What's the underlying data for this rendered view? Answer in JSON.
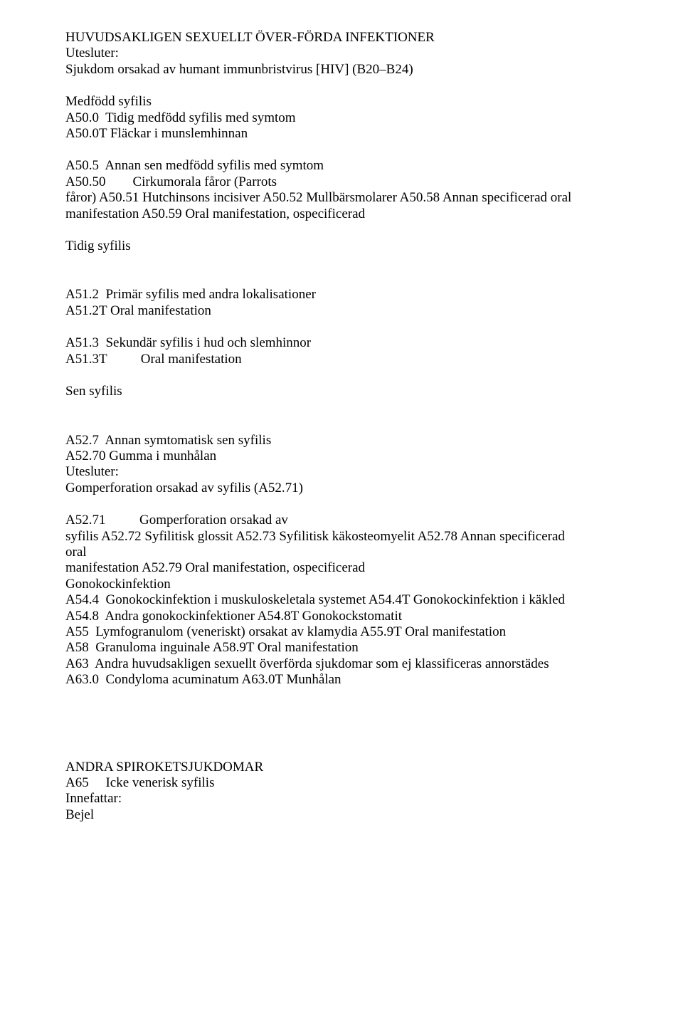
{
  "lines": {
    "l1": "HUVUDSAKLIGEN SEXUELLT ÖVER-FÖRDA INFEKTIONER",
    "l2": "Utesluter:",
    "l3": "Sjukdom orsakad av humant immunbristvirus [HIV] (B20–B24)",
    "l4": "Medfödd syfilis",
    "l5": "A50.0  Tidig medfödd syfilis med symtom",
    "l6": "A50.0T Fläckar i munslemhinnan",
    "l7": "A50.5  Annan sen medfödd syfilis med symtom",
    "l8": "A50.50        Cirkumorala fåror (Parrots",
    "l9": "fåror) A50.51 Hutchinsons incisiver A50.52 Mullbärsmolarer A50.58 Annan specificerad oral",
    "l10": "manifestation A50.59 Oral manifestation, ospecificerad",
    "l11": "Tidig syfilis",
    "l12": "A51.2  Primär syfilis med andra lokalisationer",
    "l13": "A51.2T Oral manifestation",
    "l14": "A51.3  Sekundär syfilis i hud och slemhinnor",
    "l15": "A51.3T          Oral manifestation",
    "l16": "Sen syfilis",
    "l17": "A52.7  Annan symtomatisk sen syfilis",
    "l18": "A52.70 Gumma i munhålan",
    "l19": "Utesluter:",
    "l20": "Gomperforation orsakad av syfilis (A52.71)",
    "l21": "A52.71          Gomperforation orsakad av",
    "l22": "syfilis A52.72 Syfilitisk glossit A52.73 Syfilitisk käkosteomyelit A52.78 Annan specificerad",
    "l23": "oral",
    "l24": "manifestation A52.79 Oral manifestation, ospecificerad",
    "l25": "Gonokockinfektion",
    "l26": "A54.4  Gonokockinfektion i muskuloskeletala systemet A54.4T Gonokockinfektion i käkled",
    "l27": "A54.8  Andra gonokockinfektioner A54.8T Gonokockstomatit",
    "l28": "A55  Lymfogranulom (veneriskt) orsakat av klamydia A55.9T Oral manifestation",
    "l29": "A58  Granuloma inguinale A58.9T Oral manifestation",
    "l30": "A63  Andra huvudsakligen sexuellt överförda sjukdomar som ej klassificeras annorstädes",
    "l31": "A63.0  Condyloma acuminatum A63.0T Munhålan",
    "l32": "ANDRA SPIROKETSJUKDOMAR",
    "l33": "A65     Icke venerisk syfilis",
    "l34": "Innefattar:",
    "l35": "Bejel"
  }
}
